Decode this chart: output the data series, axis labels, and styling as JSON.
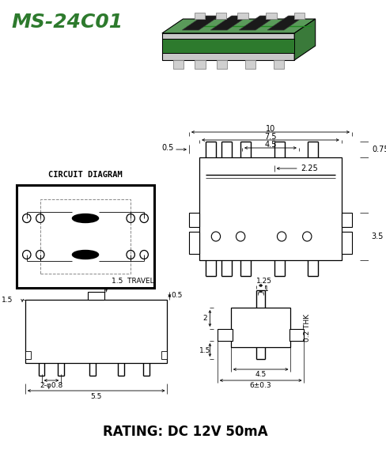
{
  "title": "MS-24C01",
  "rating": "RATING: DC 12V 50mA",
  "bg_color": "#ffffff",
  "title_color": "#2d7a2d",
  "title_fontsize": 18,
  "rating_fontsize": 12,
  "circuit_label": "CIRCUIT DIAGRAM"
}
